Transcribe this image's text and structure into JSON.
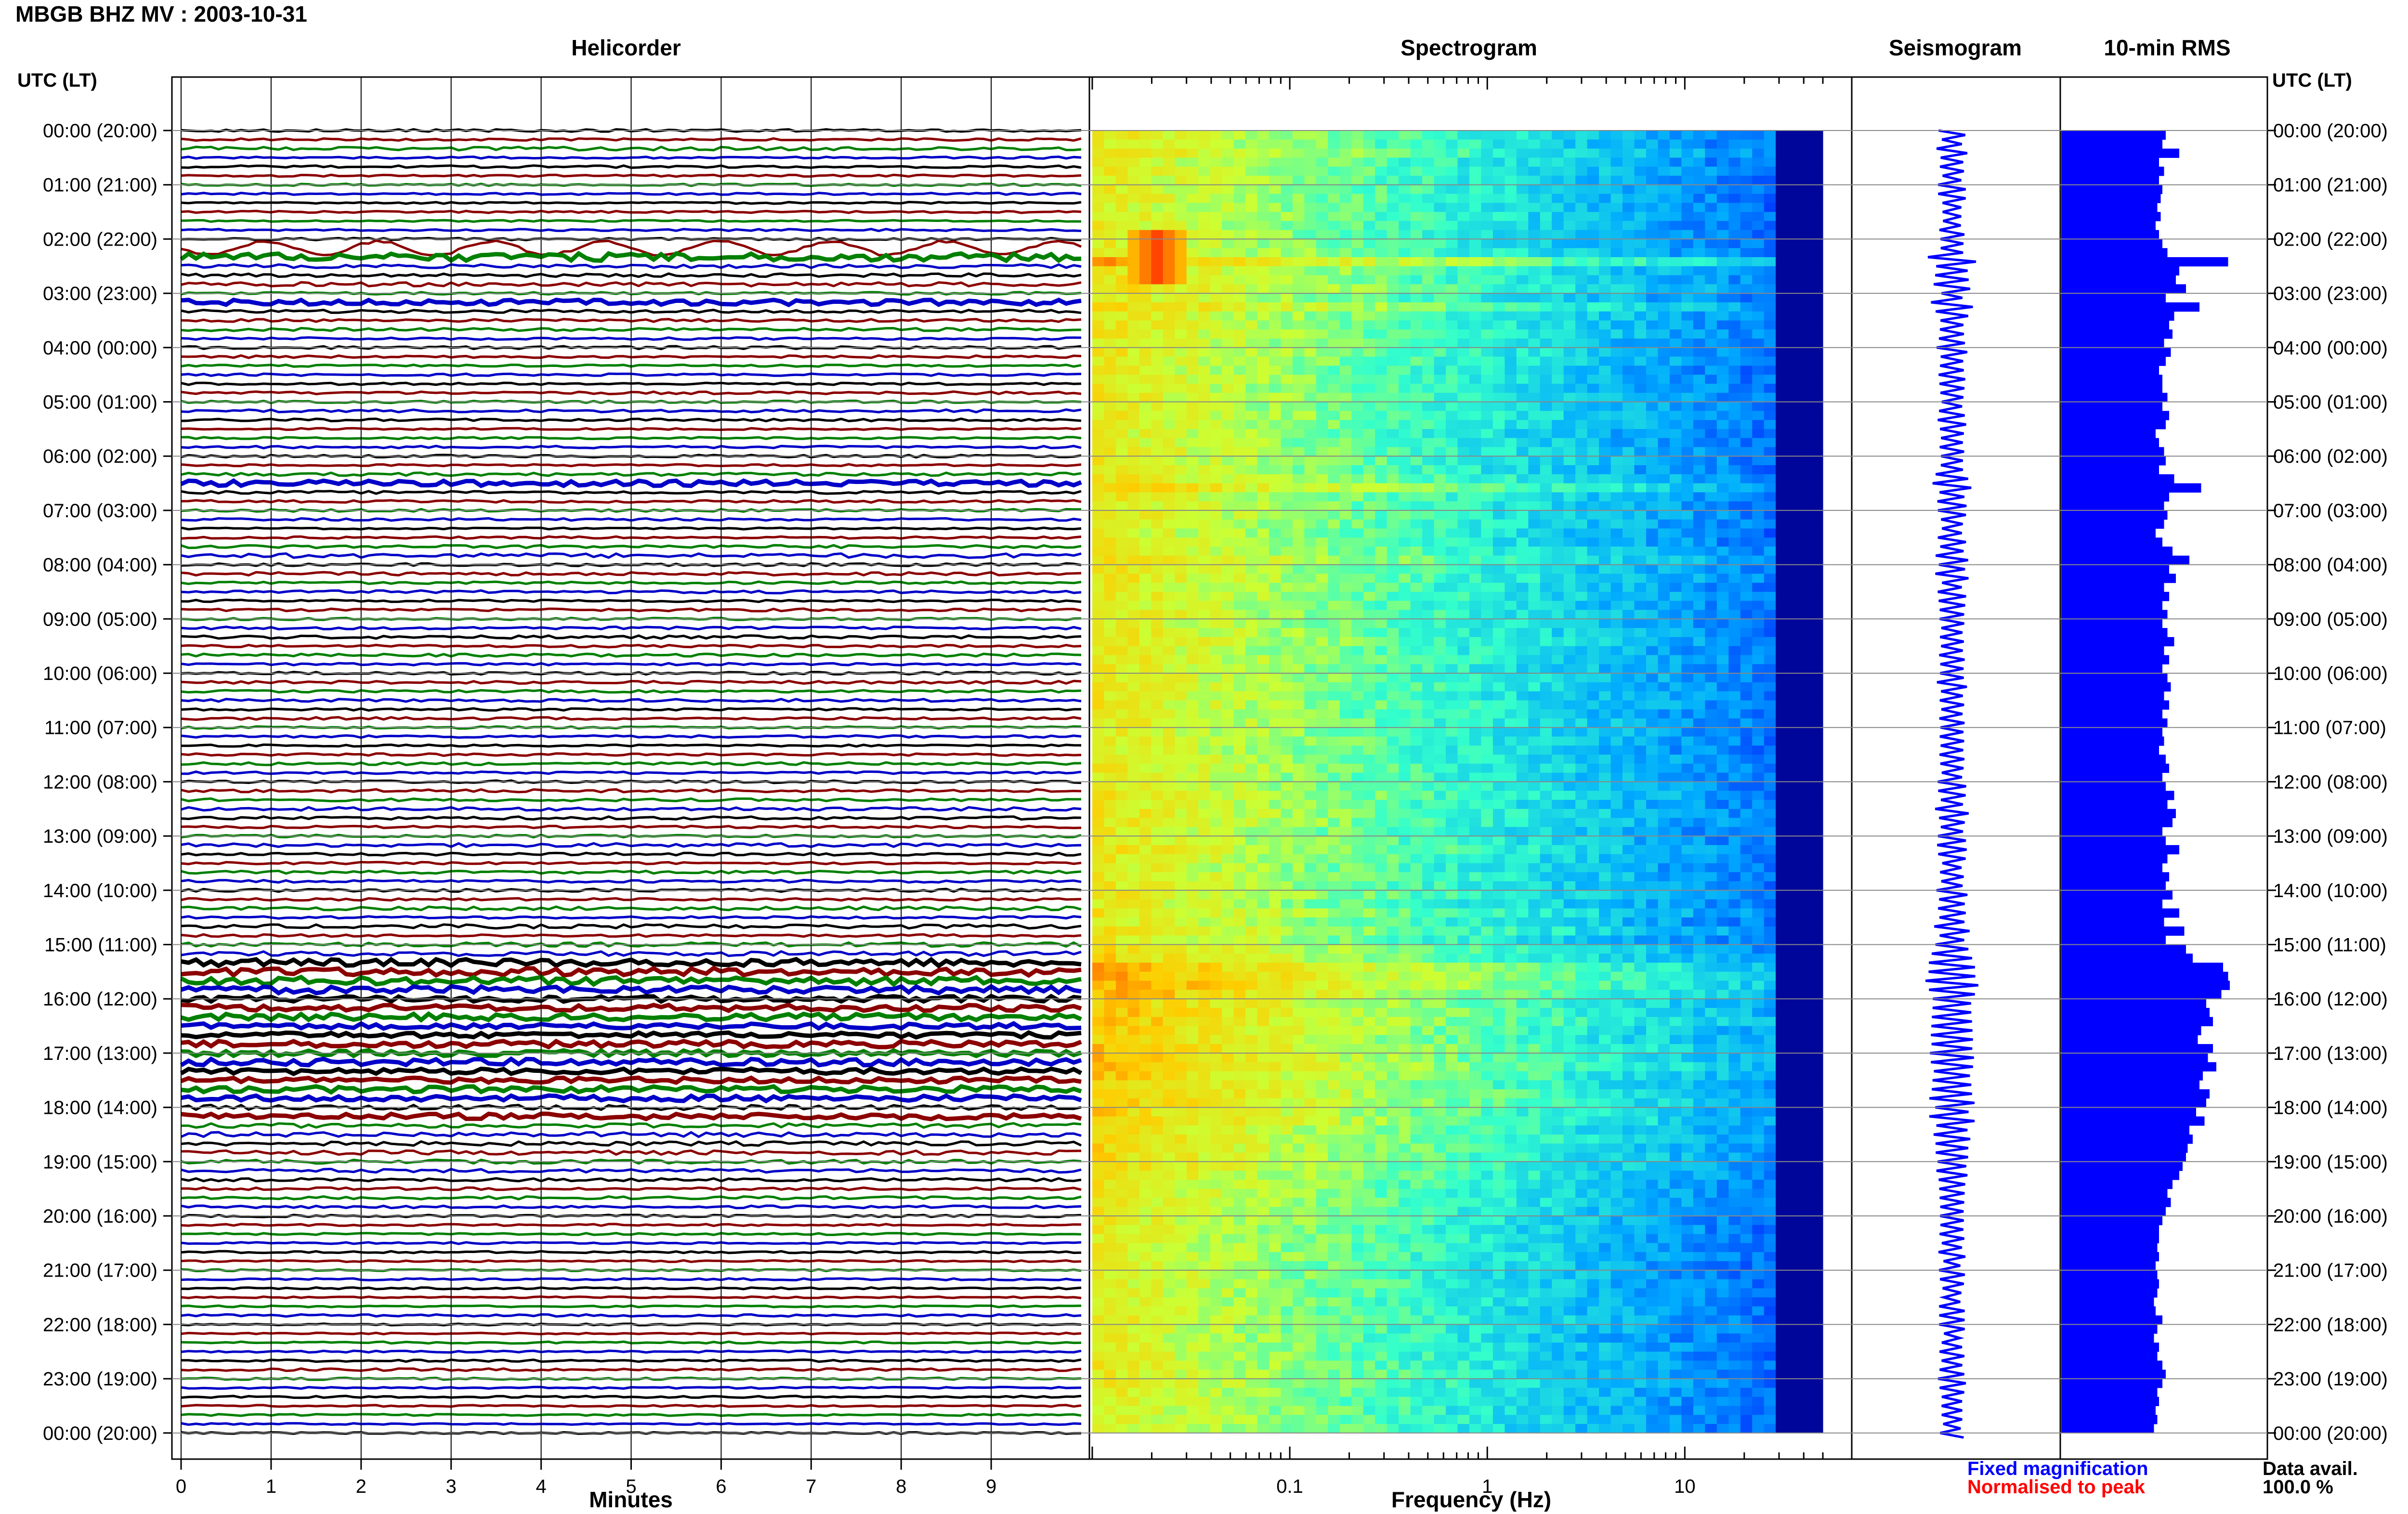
{
  "header": {
    "title": "MBGB BHZ MV : 2003-10-31",
    "utc_label_left": "UTC (LT)",
    "utc_label_right": "UTC (LT)"
  },
  "panels": {
    "helicorder": "Helicorder",
    "spectrogram": "Spectrogram",
    "seismogram": "Seismogram",
    "rms": "10-min RMS"
  },
  "legend": {
    "fixed": "Fixed magnification",
    "normalised": "Normalised to peak",
    "fixed_color": "#0000ff",
    "normalised_color": "#ff0000"
  },
  "data_availability": {
    "label": "Data avail.",
    "value": "100.0 %"
  },
  "chart_data": [
    {
      "type": "line",
      "panel": "Helicorder",
      "xlabel": "Minutes",
      "x_ticks": [
        "0",
        "1",
        "2",
        "3",
        "4",
        "5",
        "6",
        "7",
        "8",
        "9"
      ],
      "xlim": [
        0,
        10
      ],
      "row_labels": [
        "00:00 (20:00)",
        "01:00 (21:00)",
        "02:00 (22:00)",
        "03:00 (23:00)",
        "04:00 (00:00)",
        "05:00 (01:00)",
        "06:00 (02:00)",
        "07:00 (03:00)",
        "08:00 (04:00)",
        "09:00 (05:00)",
        "10:00 (06:00)",
        "11:00 (07:00)",
        "12:00 (08:00)",
        "13:00 (09:00)",
        "14:00 (10:00)",
        "15:00 (11:00)",
        "16:00 (12:00)",
        "17:00 (13:00)",
        "18:00 (14:00)",
        "19:00 (15:00)",
        "20:00 (16:00)",
        "21:00 (17:00)",
        "22:00 (18:00)",
        "23:00 (19:00)",
        "00:00 (20:00)"
      ],
      "traces_per_hour": 6,
      "trace_colors": [
        "#000000",
        "#8b0000",
        "#008000",
        "#0000c8"
      ],
      "grid": true
    },
    {
      "type": "heatmap",
      "panel": "Spectrogram",
      "xlabel": "Frequency (Hz)",
      "x_scale": "log",
      "xlim": [
        0.01,
        50
      ],
      "x_ticks": [
        "0.1",
        "1",
        "10"
      ],
      "colormap": [
        "#00008b",
        "#0033ff",
        "#00aaff",
        "#33ffcc",
        "#ccff33",
        "#ffcc00",
        "#ff3300"
      ]
    },
    {
      "type": "line",
      "panel": "Seismogram",
      "color": "#0000ff"
    },
    {
      "type": "bar",
      "panel": "10-min RMS",
      "orientation": "horizontal",
      "color": "#0000ff",
      "values": [
        0.62,
        0.6,
        0.7,
        0.58,
        0.61,
        0.58,
        0.6,
        0.59,
        0.57,
        0.59,
        0.56,
        0.58,
        0.6,
        0.63,
        0.99,
        0.7,
        0.68,
        0.74,
        0.62,
        0.82,
        0.67,
        0.64,
        0.66,
        0.61,
        0.65,
        0.62,
        0.58,
        0.6,
        0.6,
        0.63,
        0.6,
        0.64,
        0.62,
        0.56,
        0.58,
        0.61,
        0.62,
        0.58,
        0.67,
        0.83,
        0.64,
        0.61,
        0.63,
        0.61,
        0.56,
        0.6,
        0.66,
        0.76,
        0.64,
        0.68,
        0.61,
        0.64,
        0.6,
        0.63,
        0.6,
        0.63,
        0.67,
        0.61,
        0.64,
        0.6,
        0.63,
        0.65,
        0.61,
        0.64,
        0.6,
        0.63,
        0.6,
        0.61,
        0.58,
        0.62,
        0.64,
        0.6,
        0.62,
        0.67,
        0.63,
        0.68,
        0.66,
        0.6,
        0.62,
        0.7,
        0.63,
        0.6,
        0.64,
        0.62,
        0.66,
        0.6,
        0.7,
        0.61,
        0.73,
        0.62,
        0.74,
        0.78,
        0.96,
        0.99,
        1.0,
        0.95,
        0.86,
        0.88,
        0.9,
        0.83,
        0.81,
        0.9,
        0.87,
        0.92,
        0.84,
        0.82,
        0.88,
        0.86,
        0.8,
        0.85,
        0.76,
        0.78,
        0.75,
        0.74,
        0.72,
        0.7,
        0.66,
        0.63,
        0.65,
        0.62,
        0.6,
        0.58,
        0.58,
        0.57,
        0.58,
        0.56,
        0.57,
        0.58,
        0.57,
        0.55,
        0.56,
        0.6,
        0.57,
        0.55,
        0.58,
        0.57,
        0.6,
        0.62,
        0.6,
        0.57,
        0.58,
        0.56,
        0.57,
        0.55
      ]
    }
  ]
}
